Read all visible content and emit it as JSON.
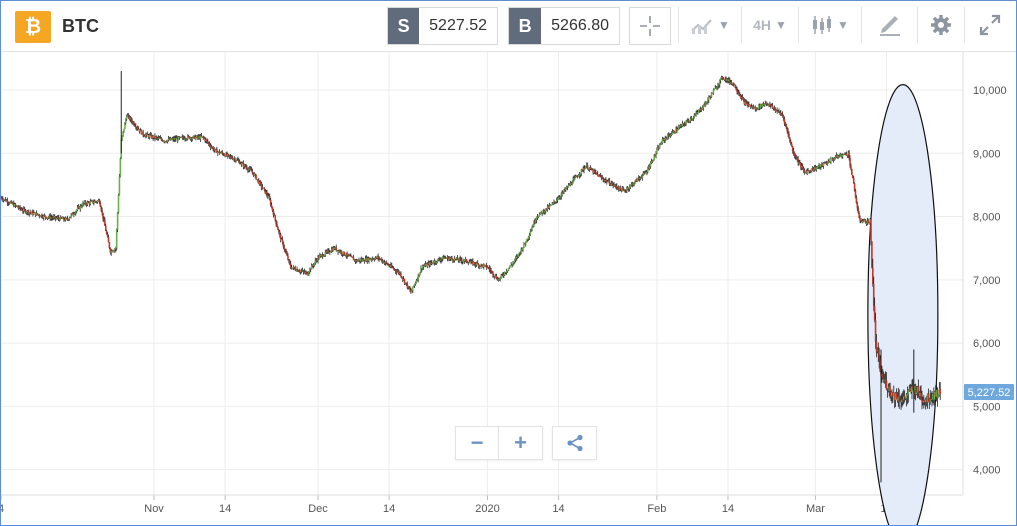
{
  "header": {
    "symbol": "BTC",
    "logo_glyph": "₿",
    "sell_tag": "S",
    "sell_price": "5227.52",
    "buy_tag": "B",
    "buy_price": "5266.80",
    "timeframe": "4H"
  },
  "icons": [
    "crosshair-icon",
    "chart-type-icon",
    "candles-icon",
    "draw-icon",
    "settings-icon",
    "fullscreen-icon",
    "zoom-out-icon",
    "zoom-in-icon",
    "share-icon"
  ],
  "colors": {
    "up": "#6ab04c",
    "down": "#c0392b",
    "wick": "#222222",
    "price_tag": "#6fa8dc",
    "annotation_fill": "#e4ecfa"
  },
  "chart_data": {
    "type": "candlestick",
    "ylim": [
      3600,
      10600
    ],
    "y_ticks": [
      4000,
      5000,
      6000,
      7000,
      8000,
      9000,
      10000
    ],
    "y_tick_labels": [
      "4,000",
      "5,000",
      "6,000",
      "7,000",
      "8,000",
      "9,000",
      "10,000"
    ],
    "x_tick_labels": [
      "4",
      "Nov",
      "14",
      "Dec",
      "14",
      "2020",
      "14",
      "Feb",
      "14",
      "Mar",
      "14"
    ],
    "x_tick_dates": [
      "2019-10-04",
      "2019-11-01",
      "2019-11-14",
      "2019-12-01",
      "2019-12-14",
      "2020-01-01",
      "2020-01-14",
      "2020-02-01",
      "2020-02-14",
      "2020-03-01",
      "2020-03-14"
    ],
    "x_range": [
      "2019-10-04",
      "2020-03-28"
    ],
    "last_price_label": "5,227.52",
    "last_price": 5227.52,
    "price_path": [
      [
        "2019-10-04",
        8300
      ],
      [
        "2019-10-08",
        8100
      ],
      [
        "2019-10-12",
        8000
      ],
      [
        "2019-10-16",
        7950
      ],
      [
        "2019-10-19",
        8200
      ],
      [
        "2019-10-22",
        8250
      ],
      [
        "2019-10-24",
        7450
      ],
      [
        "2019-10-25",
        7500
      ],
      [
        "2019-10-26",
        9200
      ],
      [
        "2019-10-27",
        9600
      ],
      [
        "2019-10-30",
        9300
      ],
      [
        "2019-11-03",
        9200
      ],
      [
        "2019-11-07",
        9250
      ],
      [
        "2019-11-10",
        9250
      ],
      [
        "2019-11-12",
        9050
      ],
      [
        "2019-11-16",
        8900
      ],
      [
        "2019-11-19",
        8700
      ],
      [
        "2019-11-22",
        8300
      ],
      [
        "2019-11-24",
        7700
      ],
      [
        "2019-11-26",
        7200
      ],
      [
        "2019-11-29",
        7100
      ],
      [
        "2019-12-01",
        7350
      ],
      [
        "2019-12-04",
        7500
      ],
      [
        "2019-12-08",
        7300
      ],
      [
        "2019-12-12",
        7350
      ],
      [
        "2019-12-16",
        7100
      ],
      [
        "2019-12-18",
        6800
      ],
      [
        "2019-12-19",
        7000
      ],
      [
        "2019-12-20",
        7200
      ],
      [
        "2019-12-24",
        7350
      ],
      [
        "2019-12-28",
        7300
      ],
      [
        "2020-01-01",
        7200
      ],
      [
        "2020-01-03",
        7000
      ],
      [
        "2020-01-06",
        7300
      ],
      [
        "2020-01-08",
        7600
      ],
      [
        "2020-01-10",
        8000
      ],
      [
        "2020-01-13",
        8200
      ],
      [
        "2020-01-16",
        8500
      ],
      [
        "2020-01-19",
        8800
      ],
      [
        "2020-01-22",
        8600
      ],
      [
        "2020-01-26",
        8400
      ],
      [
        "2020-01-30",
        8700
      ],
      [
        "2020-02-02",
        9200
      ],
      [
        "2020-02-05",
        9400
      ],
      [
        "2020-02-08",
        9600
      ],
      [
        "2020-02-10",
        9800
      ],
      [
        "2020-02-13",
        10200
      ],
      [
        "2020-02-15",
        10100
      ],
      [
        "2020-02-17",
        9800
      ],
      [
        "2020-02-19",
        9700
      ],
      [
        "2020-02-21",
        9800
      ],
      [
        "2020-02-24",
        9600
      ],
      [
        "2020-02-26",
        9000
      ],
      [
        "2020-02-28",
        8700
      ],
      [
        "2020-03-02",
        8800
      ],
      [
        "2020-03-05",
        8950
      ],
      [
        "2020-03-07",
        9000
      ],
      [
        "2020-03-08",
        8500
      ],
      [
        "2020-03-09",
        7950
      ],
      [
        "2020-03-11",
        7900
      ],
      [
        "2020-03-12",
        6000
      ],
      [
        "2020-03-13",
        5500
      ],
      [
        "2020-03-15",
        5200
      ],
      [
        "2020-03-17",
        5100
      ],
      [
        "2020-03-19",
        5300
      ],
      [
        "2020-03-21",
        5100
      ],
      [
        "2020-03-23",
        5200
      ],
      [
        "2020-03-24",
        5227.52
      ]
    ]
  }
}
